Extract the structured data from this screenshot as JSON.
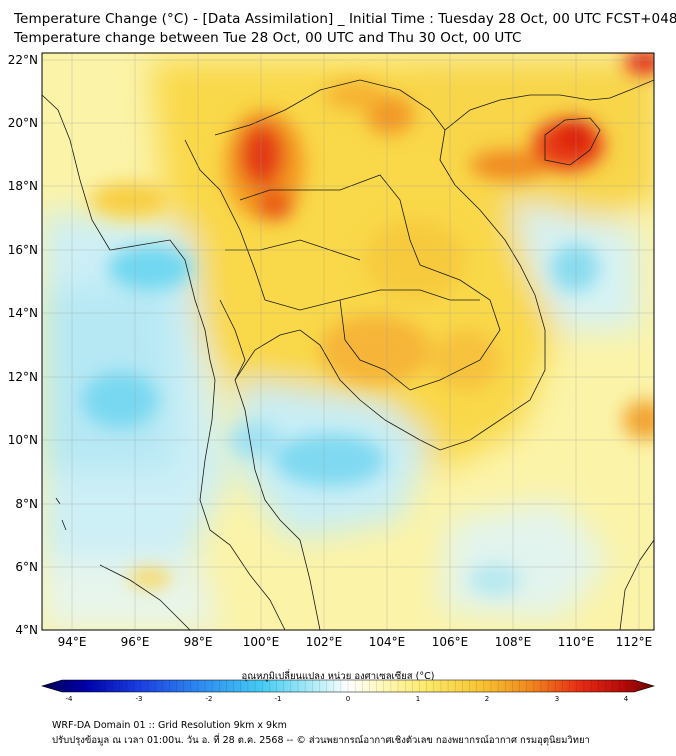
{
  "header": {
    "title_line1": "Temperature Change (°C) - [Data Assimilation] _ Initial Time : Tuesday 28 Oct, 00 UTC FCST+048",
    "title_line2": "Temperature change between Tue 28 Oct, 00 UTC and Thu 30 Oct, 00 UTC"
  },
  "map": {
    "lon_range": [
      93,
      112.5
    ],
    "lat_range": [
      4,
      22.2
    ],
    "lat_labels": [
      "4°N",
      "6°N",
      "8°N",
      "10°N",
      "12°N",
      "14°N",
      "16°N",
      "18°N",
      "20°N",
      "22°N"
    ],
    "lon_labels": [
      "94°E",
      "96°E",
      "98°E",
      "100°E",
      "102°E",
      "104°E",
      "106°E",
      "108°E",
      "110°E",
      "112°E"
    ],
    "hotspots": [
      {
        "lon": 100.0,
        "lat": 18.9,
        "value": 3.0
      },
      {
        "lon": 101.0,
        "lat": 17.2,
        "value": 2.4
      },
      {
        "lon": 104.0,
        "lat": 20.0,
        "value": 2.2
      },
      {
        "lon": 109.8,
        "lat": 19.4,
        "value": 3.2
      },
      {
        "lon": 108.0,
        "lat": 18.7,
        "value": 2.4
      },
      {
        "lon": 111.8,
        "lat": 22.0,
        "value": 3.0
      },
      {
        "lon": 103.5,
        "lat": 13.0,
        "value": 1.9
      },
      {
        "lon": 112.0,
        "lat": 10.5,
        "value": 1.9
      }
    ],
    "coldspots": [
      {
        "lon": 95.8,
        "lat": 15.2,
        "value": -0.9
      },
      {
        "lon": 95.3,
        "lat": 11.2,
        "value": -1.0
      },
      {
        "lon": 102.0,
        "lat": 9.3,
        "value": -1.0
      },
      {
        "lon": 109.6,
        "lat": 15.4,
        "value": -0.8
      },
      {
        "lon": 107.5,
        "lat": 5.5,
        "value": -0.6
      }
    ]
  },
  "colorbar": {
    "label": "อุณหภูมิเปลี่ยนแปลง หน่วย องศาเซลเซียส (°C)",
    "range": [
      -4,
      4
    ],
    "ticks": [
      "-4",
      "-3",
      "-2",
      "-1",
      "0",
      "1",
      "2",
      "3",
      "4"
    ]
  },
  "footer": {
    "line1": "WRF-DA Domain 01 :: Grid Resolution 9km x 9km",
    "line2": "ปรับปรุงข้อมูล ณ เวลา 01:00น. วัน อ. ที่ 28 ต.ค. 2568 -- © ส่วนพยากรณ์อากาศเชิงตัวเลข กองพยากรณ์อากาศ กรมอุตุนิยมวิทยา"
  }
}
